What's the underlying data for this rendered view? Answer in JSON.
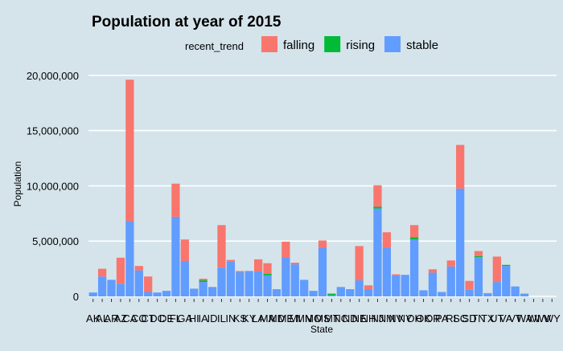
{
  "chart_data": {
    "type": "bar",
    "stacked": true,
    "title": "Population at year of 2015",
    "xlabel": "State",
    "ylabel": "Population",
    "ylim": [
      0,
      21000000
    ],
    "y_ticks": [
      0,
      5000000,
      10000000,
      15000000,
      20000000
    ],
    "y_tick_labels": [
      "0",
      "5,000,000",
      "10,000,000",
      "15,000,000",
      "20,000,000"
    ],
    "grid": true,
    "legend_position": "top",
    "legend_title": "recent_trend",
    "categories": [
      "AK",
      "AL",
      "AR",
      "AZ",
      "CA",
      "CO",
      "CT",
      "DC",
      "DE",
      "FL",
      "GA",
      "HI",
      "IA",
      "ID",
      "IL",
      "IN",
      "KS",
      "KY",
      "LA",
      "MA",
      "MD",
      "ME",
      "MI",
      "MN",
      "MO",
      "MS",
      "MT",
      "NC",
      "ND",
      "NE",
      "NH",
      "NJ",
      "NM",
      "NV",
      "NY",
      "OH",
      "OK",
      "OR",
      "PA",
      "RI",
      "SC",
      "SD",
      "TN",
      "TX",
      "UT",
      "VA",
      "VT",
      "WA",
      "WI",
      "WV",
      "WY"
    ],
    "series": [
      {
        "name": "stable",
        "color": "#619cff",
        "values": [
          350000,
          1800000,
          1500000,
          1150000,
          6800000,
          2350000,
          400000,
          350000,
          500000,
          7200000,
          3200000,
          700000,
          1300000,
          850000,
          2600000,
          3150000,
          2200000,
          2300000,
          2250000,
          1900000,
          650000,
          3550000,
          2900000,
          1500000,
          500000,
          4400000,
          100000,
          850000,
          650000,
          1450000,
          650000,
          7950000,
          4400000,
          1900000,
          1950000,
          5150000,
          550000,
          2150000,
          400000,
          2700000,
          9750000,
          600000,
          3550000,
          250000,
          1300000,
          2750000,
          900000,
          250000,
          0,
          0,
          0
        ]
      },
      {
        "name": "rising",
        "color": "#00ba38",
        "values": [
          0,
          0,
          0,
          0,
          0,
          0,
          0,
          0,
          0,
          0,
          0,
          0,
          150000,
          0,
          0,
          0,
          0,
          0,
          0,
          150000,
          0,
          0,
          0,
          0,
          0,
          0,
          150000,
          0,
          0,
          0,
          0,
          150000,
          0,
          0,
          0,
          200000,
          0,
          0,
          0,
          0,
          0,
          0,
          100000,
          0,
          0,
          100000,
          0,
          0,
          0,
          0,
          0
        ]
      },
      {
        "name": "falling",
        "color": "#f8766d",
        "values": [
          0,
          700000,
          0,
          2350000,
          12800000,
          400000,
          1400000,
          0,
          0,
          3000000,
          1950000,
          0,
          150000,
          0,
          3850000,
          150000,
          100000,
          0,
          1100000,
          950000,
          0,
          1400000,
          150000,
          0,
          0,
          650000,
          0,
          0,
          0,
          3100000,
          350000,
          1950000,
          1400000,
          100000,
          0,
          1100000,
          0,
          300000,
          0,
          550000,
          3950000,
          800000,
          450000,
          50000,
          2300000,
          0,
          0,
          0,
          0,
          0,
          0
        ]
      }
    ]
  }
}
